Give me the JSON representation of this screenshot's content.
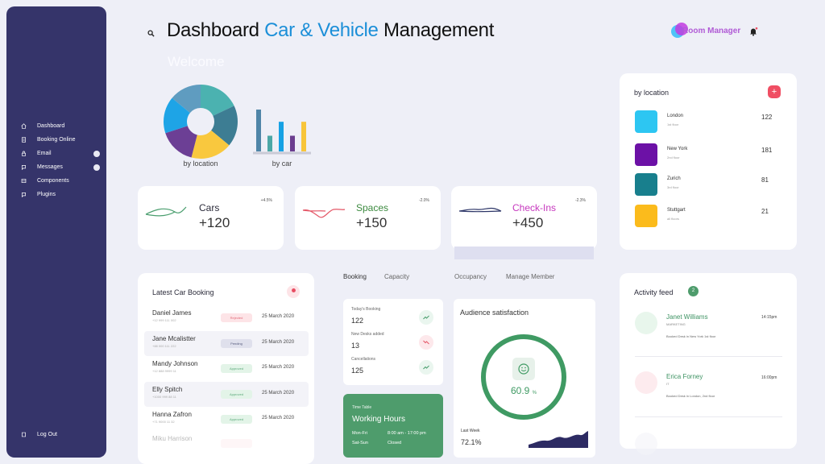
{
  "sidebar": {
    "items": [
      {
        "label": "Dashboard",
        "icon": "home-icon"
      },
      {
        "label": "Booking Online",
        "icon": "document-icon"
      },
      {
        "label": "Email",
        "icon": "lock-icon"
      },
      {
        "label": "Messages",
        "icon": "chat-icon"
      },
      {
        "label": "Components",
        "icon": "grid-icon"
      },
      {
        "label": "Plugins",
        "icon": "plugin-icon"
      }
    ],
    "logout": "Log Out"
  },
  "header": {
    "title_prefix": "Dashboard ",
    "title_highlight": "Car & Vehicle",
    "title_suffix": " Management",
    "brand": "Room Manager",
    "welcome": "Welcome"
  },
  "charts": {
    "pie_caption": "by location",
    "bar_caption": "by car",
    "pie": {
      "values": [
        18,
        18,
        18,
        16,
        16,
        14
      ],
      "colors": [
        "#4bb2b0",
        "#3d7d93",
        "#f9c83e",
        "#6c3f95",
        "#1ea4e6",
        "#5f9cc0"
      ]
    },
    "bars": {
      "values": [
        48,
        18,
        34,
        18,
        34
      ],
      "colors": [
        "#4f85a8",
        "#4ba7a6",
        "#17a1e4",
        "#6b3d8f",
        "#f8c53a"
      ]
    }
  },
  "stats": [
    {
      "label": "Cars",
      "value": "+120",
      "change": "+4.5%",
      "color": "#222",
      "line": "#4a9e6e"
    },
    {
      "label": "Spaces",
      "value": "+150",
      "change": "-2.0%",
      "color": "#3c8a3f",
      "line": "#e45767"
    },
    {
      "label": "Check-Ins",
      "value": "+450",
      "change": "-2.3%",
      "color": "#c638be",
      "line": "#2c3567"
    }
  ],
  "location": {
    "title": "by location",
    "add": "+",
    "rows": [
      {
        "name": "London",
        "sub": "1st floor",
        "count": "122",
        "color": "#2dc6f2"
      },
      {
        "name": "New York",
        "sub": "2nd floor",
        "count": "181",
        "color": "#6c11a6"
      },
      {
        "name": "Zurich",
        "sub": "3rd floor",
        "count": "81",
        "color": "#187f8d"
      },
      {
        "name": "Stuttgart",
        "sub": "all floors",
        "count": "21",
        "color": "#fbbb1c"
      }
    ]
  },
  "booking": {
    "title": "Latest Car Booking",
    "rows": [
      {
        "name": "Daniel James",
        "phone": "+12 999 111 002",
        "status": "Rejected",
        "date": "25 March 2020"
      },
      {
        "name": "Jane Mcalistter",
        "phone": "+88 000 111 222",
        "status": "Pending",
        "date": "25 March 2020"
      },
      {
        "name": "Mandy Johnson",
        "phone": "+12 888 9999 11",
        "status": "Approved",
        "date": "25 March 2020"
      },
      {
        "name": "Elly Spitch",
        "phone": "+1000 999 88 11",
        "status": "Approved",
        "date": "25 March 2020"
      },
      {
        "name": "Hanna Zafron",
        "phone": "+71 9000 11 32",
        "status": "Approved",
        "date": "25 March 2020"
      }
    ],
    "faded_name": "Miku Harrison"
  },
  "tabs": [
    "Booking",
    "Capacity",
    "Occupancy",
    "Manage Member"
  ],
  "metrics": [
    {
      "label": "Today's Booking",
      "value": "122",
      "trend": "up"
    },
    {
      "label": "New Desks added",
      "value": "13",
      "trend": "down"
    },
    {
      "label": "Cancellations",
      "value": "125",
      "trend": "up"
    }
  ],
  "timetable": {
    "small": "Time Table",
    "title": "Working Hours",
    "rows": [
      {
        "day": "Mon-Fri",
        "hours": "8:00 am - 17:00 pm"
      },
      {
        "day": "Sat-Sun",
        "hours": "Closed"
      }
    ]
  },
  "audience": {
    "title": "Audience satisfaction",
    "value": "60.9",
    "unit": "%",
    "percent": 60.9,
    "last_week_label": "Last Week",
    "last_week_value": "72.1%"
  },
  "activity": {
    "title": "Activity feed",
    "badge": "2",
    "items": [
      {
        "name": "Janet Williams",
        "role": "MARKETING",
        "desc": "Booked Desk in New York 1st floor",
        "time": "14:15pm",
        "color": "#e8f6ec"
      },
      {
        "name": "Erica Forney",
        "role": "IT",
        "desc": "Booked Desk in London, 2nd floor",
        "time": "16:00pm",
        "color": "#fdebee"
      }
    ]
  }
}
